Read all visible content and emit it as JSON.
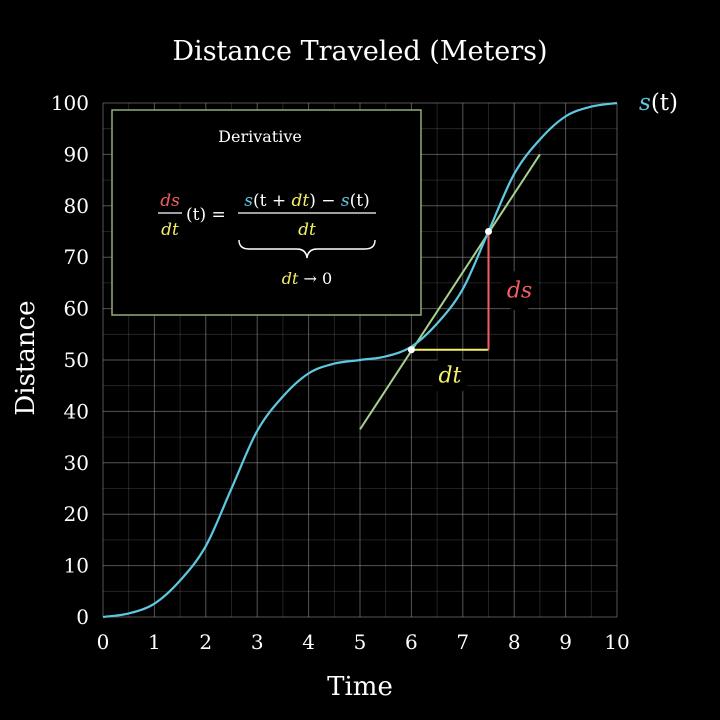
{
  "chart_data": {
    "type": "line",
    "title": "Distance Traveled (Meters)",
    "xlabel": "Time",
    "ylabel": "Distance",
    "xlim": [
      0,
      10
    ],
    "ylim": [
      0,
      100
    ],
    "x_ticks": [
      "0",
      "1",
      "2",
      "3",
      "4",
      "5",
      "6",
      "7",
      "8",
      "9",
      "10"
    ],
    "y_ticks": [
      "0",
      "10",
      "20",
      "30",
      "40",
      "50",
      "60",
      "70",
      "80",
      "90",
      "100"
    ],
    "grid": true,
    "series": [
      {
        "name": "s(t)",
        "color": "#5ec8e0",
        "x": [
          0,
          0.5,
          1,
          1.5,
          2,
          2.5,
          3,
          3.5,
          4,
          4.5,
          5,
          5.5,
          6,
          6.5,
          7,
          7.5,
          8,
          8.5,
          9,
          9.5,
          10
        ],
        "y": [
          0,
          0.7,
          2.6,
          7.1,
          13.8,
          25.0,
          36.2,
          42.9,
          47.4,
          49.3,
          50.0,
          50.7,
          52.6,
          57.1,
          63.8,
          75.0,
          86.2,
          92.9,
          97.4,
          99.3,
          100
        ]
      }
    ],
    "tangent_line": {
      "color": "#a8d08d",
      "x": [
        5,
        8.5
      ],
      "y": [
        36.5,
        90
      ]
    },
    "points": [
      {
        "x": 6,
        "y": 52
      },
      {
        "x": 7.5,
        "y": 75
      }
    ],
    "annotations": {
      "dt_label": "dt",
      "ds_label": "ds",
      "curve_label_s": "s",
      "curve_label_rest": "(t)",
      "dt_color": "#f5f06a",
      "ds_color": "#f06060"
    },
    "derivative_box": {
      "title": "Derivative",
      "border_color": "#8fae7a",
      "lhs_num": "ds",
      "lhs_den": "dt",
      "lhs_arg": "(t) =",
      "rhs_num_s1": "s",
      "rhs_num_a": "(t + ",
      "rhs_num_dt": "dt",
      "rhs_num_b": ") − ",
      "rhs_num_s2": "s",
      "rhs_num_c": "(t)",
      "rhs_den": "dt",
      "limit_dt": "dt",
      "limit_rest": " → 0"
    }
  }
}
